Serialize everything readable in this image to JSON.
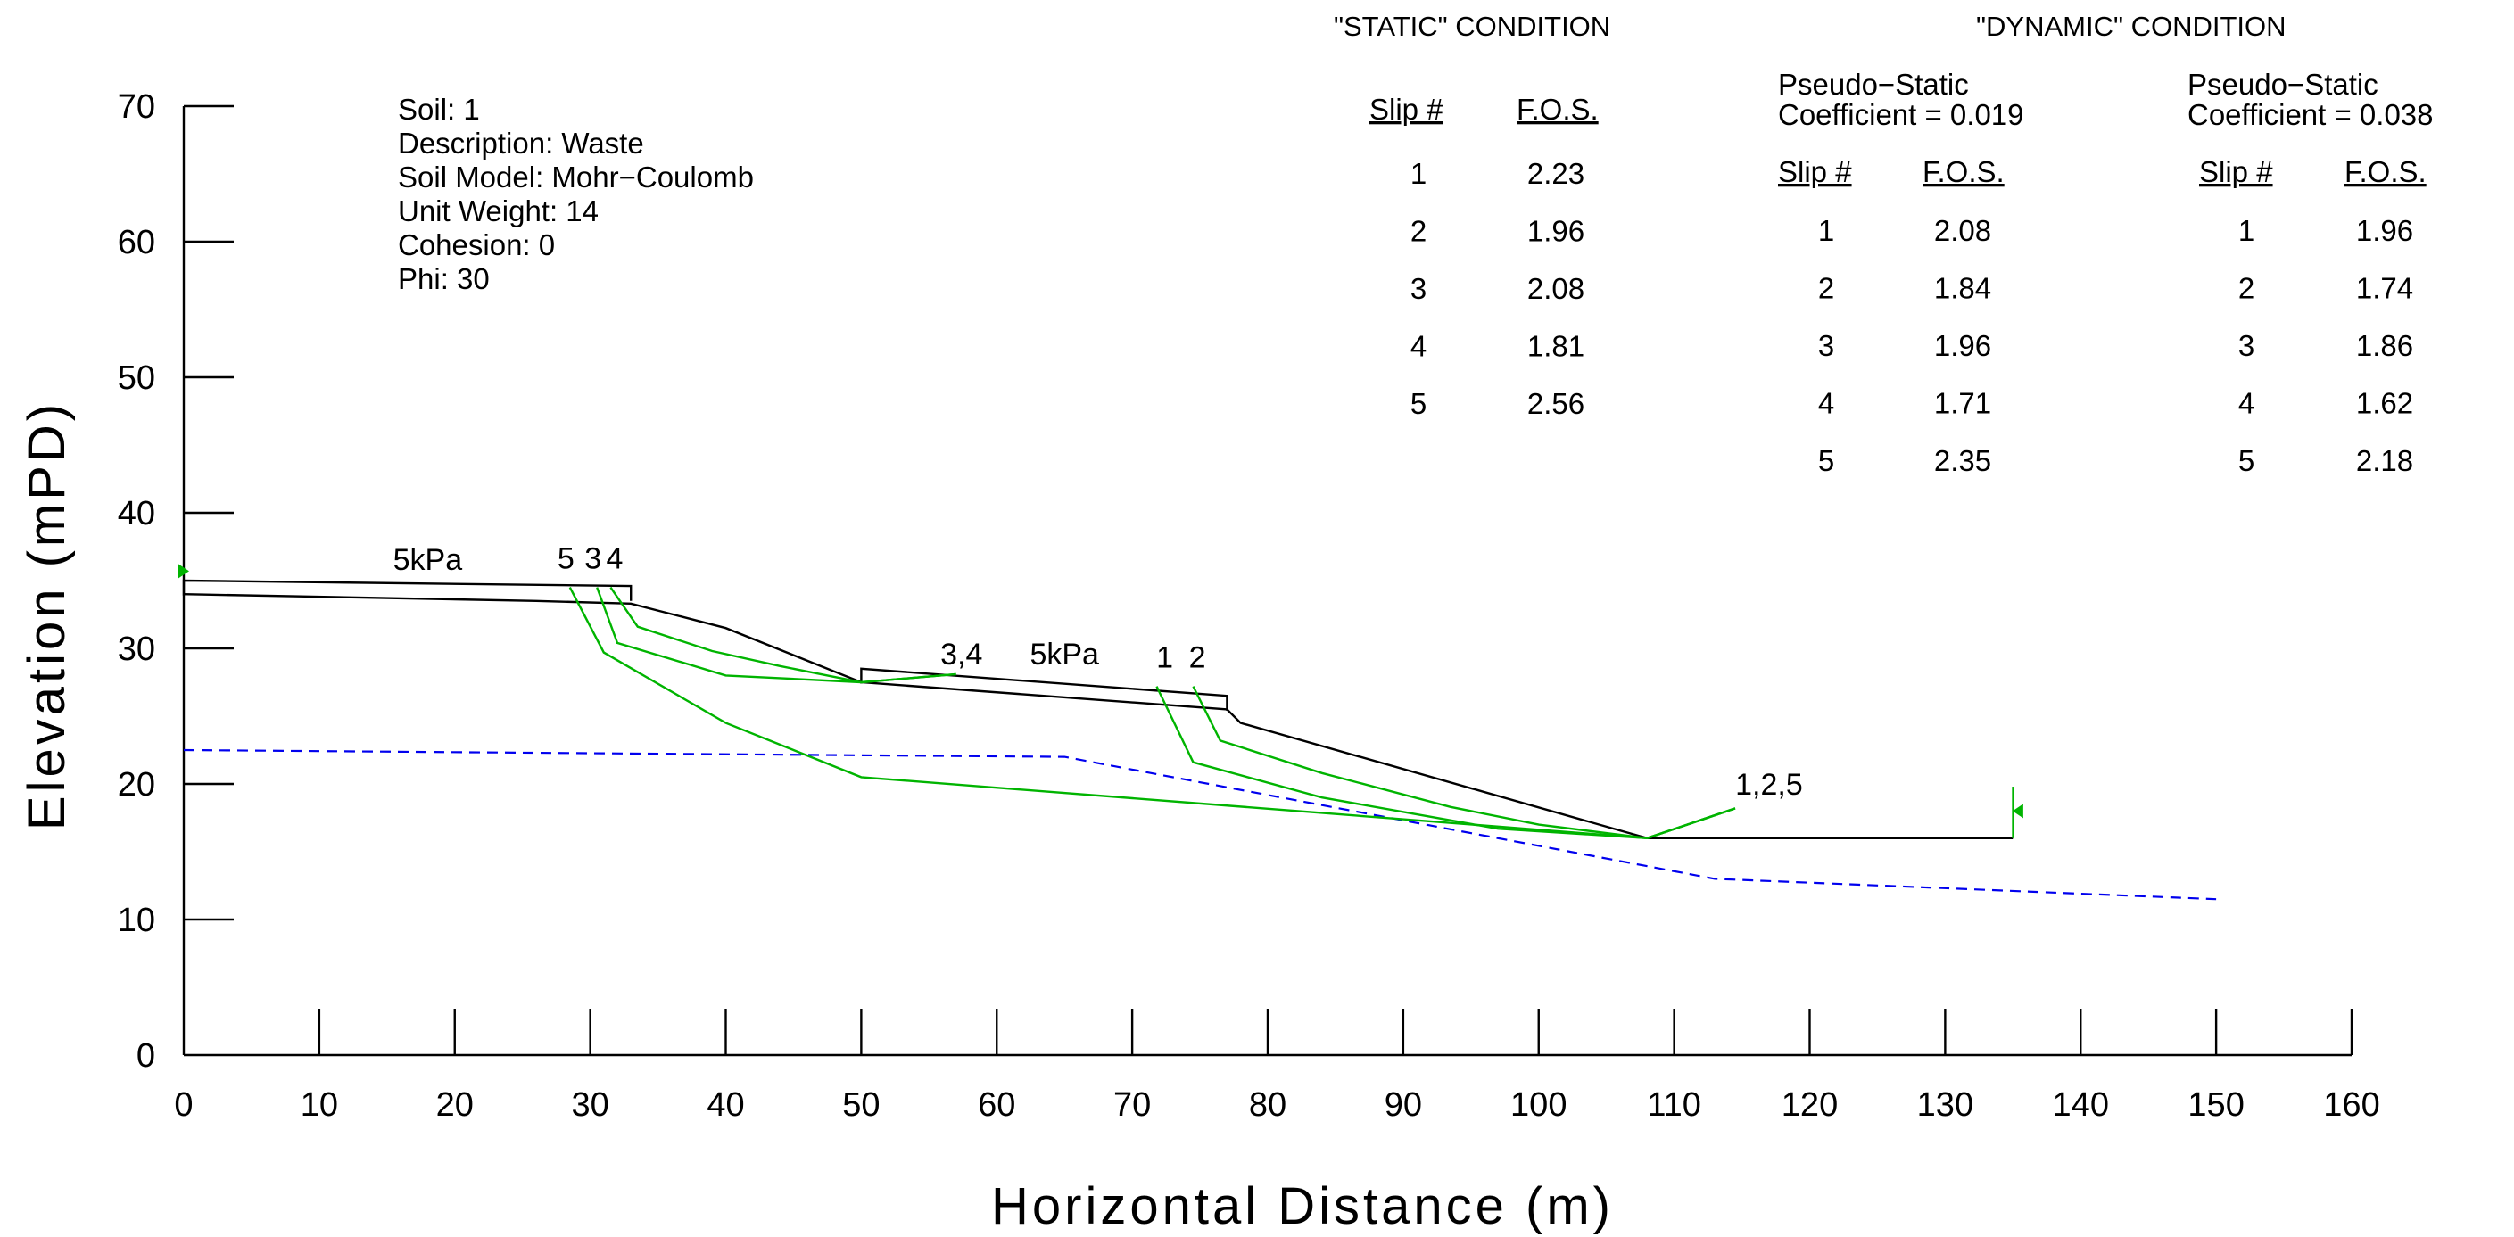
{
  "chart_data": {
    "type": "line",
    "title": "",
    "xlabel": "Horizontal Distance  (m)",
    "ylabel": "Elevation  (mPD)",
    "xlim": [
      0,
      160
    ],
    "ylim": [
      0,
      70
    ],
    "x_ticks": [
      0,
      10,
      20,
      30,
      40,
      50,
      60,
      70,
      80,
      90,
      100,
      110,
      120,
      130,
      140,
      150,
      160
    ],
    "y_ticks": [
      0,
      10,
      20,
      30,
      40,
      50,
      60,
      70
    ],
    "grid": false,
    "ground_surface": [
      [
        0,
        34
      ],
      [
        26,
        33.5
      ],
      [
        33,
        33.3
      ],
      [
        40,
        31.5
      ],
      [
        50,
        27.5
      ],
      [
        77,
        25.5
      ],
      [
        78,
        24.5
      ],
      [
        108,
        16
      ],
      [
        135,
        16
      ]
    ],
    "load_strips": [
      {
        "label": "5kPa",
        "x": [
          0,
          33
        ],
        "points": [
          [
            0,
            35
          ],
          [
            33,
            34.6
          ]
        ]
      },
      {
        "label": "5kPa",
        "x": [
          50,
          77
        ],
        "points": [
          [
            50,
            28.5
          ],
          [
            77,
            26.5
          ]
        ]
      }
    ],
    "water_table": [
      [
        0,
        22.5
      ],
      [
        65,
        22
      ],
      [
        113,
        13
      ],
      [
        150,
        11.5
      ]
    ],
    "slip_surfaces": [
      {
        "name": "1",
        "points": [
          [
            71.8,
            27.2
          ],
          [
            74.5,
            21.6
          ],
          [
            84,
            19
          ],
          [
            97,
            16.7
          ],
          [
            108,
            16
          ],
          [
            114.5,
            18.2
          ]
        ]
      },
      {
        "name": "2",
        "points": [
          [
            74.5,
            27.2
          ],
          [
            76.5,
            23.2
          ],
          [
            84,
            20.8
          ],
          [
            93.5,
            18.3
          ],
          [
            100,
            17
          ],
          [
            108,
            16
          ],
          [
            114.5,
            18.2
          ]
        ]
      },
      {
        "name": "3",
        "points": [
          [
            30.5,
            34.5
          ],
          [
            32,
            30.4
          ],
          [
            40,
            28
          ],
          [
            50,
            27.5
          ],
          [
            57,
            28.1
          ]
        ]
      },
      {
        "name": "4",
        "points": [
          [
            31.5,
            34.5
          ],
          [
            33.5,
            31.6
          ],
          [
            39,
            29.8
          ],
          [
            44,
            28.7
          ],
          [
            50,
            27.5
          ],
          [
            57,
            28.1
          ]
        ]
      },
      {
        "name": "5",
        "points": [
          [
            28.5,
            34.5
          ],
          [
            31,
            29.7
          ],
          [
            40,
            24.5
          ],
          [
            50,
            20.5
          ],
          [
            108,
            16
          ],
          [
            114.5,
            18.2
          ]
        ]
      }
    ],
    "curve_labels": [
      {
        "text": "5kPa",
        "x": 18,
        "y": 35.8
      },
      {
        "text": "5",
        "x": 28.2,
        "y": 35.9
      },
      {
        "text": "3",
        "x": 30.2,
        "y": 35.9
      },
      {
        "text": "4",
        "x": 31.8,
        "y": 35.9
      },
      {
        "text": "3,4",
        "x": 57.4,
        "y": 28.8
      },
      {
        "text": "5kPa",
        "x": 65,
        "y": 28.8
      },
      {
        "text": "1",
        "x": 72.4,
        "y": 28.6
      },
      {
        "text": "2",
        "x": 74.8,
        "y": 28.6
      },
      {
        "text": "1,2,5",
        "x": 117,
        "y": 19.2
      }
    ],
    "soil_info": [
      "Soil: 1",
      "Description: Waste",
      "Soil Model: Mohr−Coulomb",
      "Unit Weight: 14",
      "Cohesion: 0",
      "Phi: 30"
    ],
    "static_condition": {
      "heading": "\"STATIC\"  CONDITION",
      "col_headers": [
        "Slip  #",
        "F.O.S."
      ],
      "rows": [
        [
          "1",
          "2.23"
        ],
        [
          "2",
          "1.96"
        ],
        [
          "3",
          "2.08"
        ],
        [
          "4",
          "1.81"
        ],
        [
          "5",
          "2.56"
        ]
      ]
    },
    "dynamic_condition": {
      "heading": "\"DYNAMIC\"  CONDITION",
      "tables": [
        {
          "label_line1": "Pseudo−Static",
          "label_line2": "Coefficient  =  0.019",
          "col_headers": [
            "Slip  #",
            "F.O.S."
          ],
          "rows": [
            [
              "1",
              "2.08"
            ],
            [
              "2",
              "1.84"
            ],
            [
              "3",
              "1.96"
            ],
            [
              "4",
              "1.71"
            ],
            [
              "5",
              "2.35"
            ]
          ]
        },
        {
          "label_line1": "Pseudo−Static",
          "label_line2": "Coefficient  =  0.038",
          "col_headers": [
            "Slip  #",
            "F.O.S."
          ],
          "rows": [
            [
              "1",
              "1.96"
            ],
            [
              "2",
              "1.74"
            ],
            [
              "3",
              "1.86"
            ],
            [
              "4",
              "1.62"
            ],
            [
              "5",
              "2.18"
            ]
          ]
        }
      ]
    },
    "colors": {
      "slip": "#00b400",
      "water": "#0000ee",
      "surface": "#000000"
    }
  }
}
